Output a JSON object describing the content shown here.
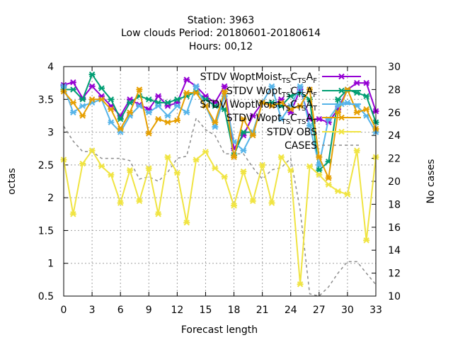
{
  "title": {
    "line1": "Station:      3963",
    "line2": "Low clouds   Period: 20180601-20180614",
    "line3": "Hours:  00,12"
  },
  "chart_data": {
    "type": "line",
    "xlabel": "Forecast length",
    "ylabel": "octas",
    "y2label": "No cases",
    "xlim": [
      0,
      33
    ],
    "ylim": [
      0.5,
      4
    ],
    "y2lim": [
      10,
      30
    ],
    "grid": true,
    "legend_position": "top-right",
    "x_ticks": [
      0,
      3,
      6,
      9,
      12,
      15,
      18,
      21,
      24,
      27,
      30,
      33
    ],
    "y_ticks": [
      0.5,
      1,
      1.5,
      2,
      2.5,
      3,
      3.5,
      4
    ],
    "y2_ticks": [
      10,
      12,
      14,
      16,
      18,
      20,
      22,
      24,
      26,
      28,
      30
    ],
    "x": [
      0,
      1,
      2,
      3,
      4,
      5,
      6,
      7,
      8,
      9,
      10,
      11,
      12,
      13,
      14,
      15,
      16,
      17,
      18,
      19,
      20,
      21,
      22,
      23,
      24,
      25,
      26,
      27,
      28,
      29,
      30,
      31,
      32,
      33
    ],
    "series": [
      {
        "name": "STDV WoptMoist_TSC_TSA_F",
        "color": "#9400d3",
        "axis": "y",
        "marker": "x",
        "values": [
          3.72,
          3.76,
          3.52,
          3.7,
          3.55,
          3.4,
          3.25,
          3.5,
          3.42,
          3.35,
          3.55,
          3.4,
          3.45,
          3.8,
          3.7,
          3.55,
          3.45,
          3.7,
          2.75,
          2.95,
          3.25,
          3.45,
          3.4,
          3.5,
          3.3,
          3.65,
          3.2,
          3.2,
          3.15,
          3.35,
          3.65,
          3.75,
          3.75,
          3.32
        ]
      },
      {
        "name": "STDV Wopt_TSC_TSA_F",
        "color": "#009e73",
        "axis": "y",
        "marker": "x",
        "values": [
          3.65,
          3.65,
          3.5,
          3.88,
          3.67,
          3.5,
          3.2,
          3.45,
          3.55,
          3.5,
          3.45,
          3.45,
          3.5,
          3.55,
          3.62,
          3.5,
          3.4,
          3.35,
          2.65,
          3.0,
          3.0,
          3.45,
          3.45,
          3.4,
          3.55,
          3.6,
          3.5,
          2.42,
          2.55,
          3.5,
          3.65,
          3.6,
          3.55,
          3.15
        ]
      },
      {
        "name": "STDV WoptMoist_TSC_TSA_T",
        "color": "#56b4e9",
        "axis": "y",
        "marker": "x",
        "values": [
          3.7,
          3.3,
          3.4,
          3.45,
          3.5,
          3.15,
          3.0,
          3.25,
          3.4,
          3.3,
          3.4,
          3.25,
          3.4,
          3.3,
          3.7,
          3.4,
          3.08,
          3.55,
          2.85,
          2.72,
          3.0,
          3.45,
          3.7,
          3.2,
          3.4,
          3.7,
          3.1,
          2.5,
          3.2,
          3.4,
          3.45,
          3.4,
          3.25,
          3.0
        ]
      },
      {
        "name": "STDV Wopt_TSC_TSA_T",
        "color": "#e69f00",
        "axis": "y",
        "marker": "x",
        "values": [
          3.62,
          3.45,
          3.25,
          3.5,
          3.5,
          3.35,
          3.05,
          3.3,
          3.65,
          2.98,
          3.2,
          3.15,
          3.18,
          3.6,
          3.6,
          3.4,
          3.15,
          3.62,
          2.62,
          3.2,
          2.95,
          3.45,
          3.4,
          3.45,
          3.35,
          3.4,
          3.65,
          2.62,
          2.3,
          3.3,
          3.65,
          3.3,
          3.35,
          3.05
        ]
      },
      {
        "name": "STDV OBS",
        "color": "#f0e442",
        "axis": "y",
        "marker": "x",
        "values": [
          2.58,
          1.75,
          2.52,
          2.72,
          2.48,
          2.35,
          1.92,
          2.42,
          1.95,
          2.45,
          1.75,
          2.62,
          2.38,
          1.62,
          2.58,
          2.7,
          2.45,
          2.32,
          1.88,
          2.4,
          1.95,
          2.5,
          1.92,
          2.62,
          2.42,
          0.68,
          2.48,
          2.35,
          2.2,
          2.1,
          2.05,
          2.72,
          1.35,
          2.62
        ]
      },
      {
        "name": "CASES",
        "color": "#8c8c8c",
        "axis": "y2",
        "dashed": true,
        "values": [
          24.8,
          23.5,
          22.6,
          22.6,
          22.0,
          22.0,
          22.0,
          21.8,
          20.2,
          20.4,
          20.0,
          20.8,
          22.0,
          22.2,
          25.5,
          24.5,
          24.0,
          22.4,
          22.4,
          22.4,
          21.2,
          20.2,
          21.0,
          21.2,
          22.0,
          17.5,
          10.2,
          10.0,
          10.8,
          12.0,
          13.0,
          13.0,
          12.0,
          11.0
        ]
      }
    ]
  },
  "legend": [
    {
      "base": "STDV WoptMoist",
      "parts": [
        "TS",
        "C",
        "TS",
        "A",
        "F"
      ]
    },
    {
      "base": "STDV Wopt",
      "parts": [
        "TS",
        "C",
        "TS",
        "A",
        "F"
      ]
    },
    {
      "base": "STDV WoptMoist",
      "parts": [
        "TS",
        "C",
        "TS",
        "A",
        "T"
      ]
    },
    {
      "base": "STDV Wopt",
      "parts": [
        "TS",
        "C",
        "TS",
        "A",
        "T"
      ]
    },
    {
      "base": "STDV OBS",
      "parts": []
    },
    {
      "base": "CASES",
      "parts": []
    }
  ]
}
